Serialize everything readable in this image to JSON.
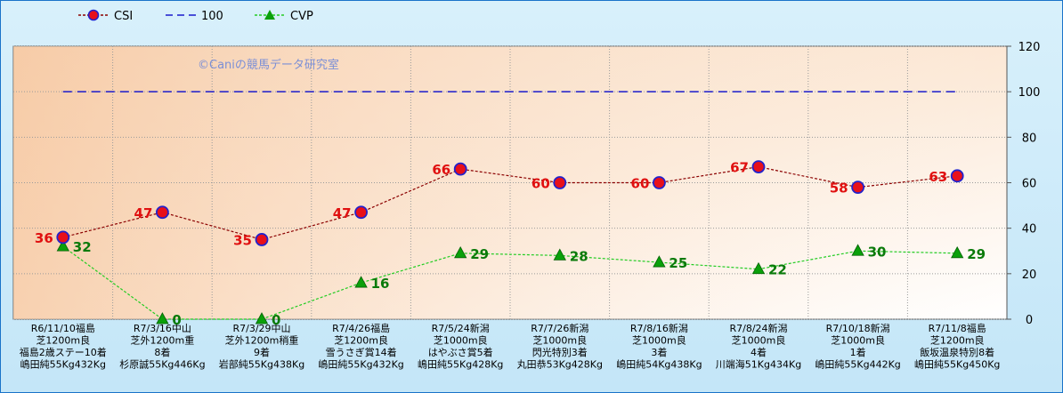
{
  "chart_data": {
    "type": "line",
    "legend_position": "top-left",
    "grid": true,
    "watermark": "©Caniの競馬データ研究室",
    "ylim": [
      0,
      120
    ],
    "y_ticks": [
      "0",
      "20",
      "40",
      "60",
      "80",
      "100",
      "120"
    ],
    "categories": [
      [
        "R6/11/10福島",
        "芝1200m良",
        "福島2歳ステー10着",
        "嶋田純55Kg432Kg"
      ],
      [
        "R7/3/16中山",
        "芝外1200m重",
        "8着",
        "杉原誠55Kg446Kg"
      ],
      [
        "R7/3/29中山",
        "芝外1200m稍重",
        "9着",
        "岩部純55Kg438Kg"
      ],
      [
        "R7/4/26福島",
        "芝1200m良",
        "雪うさぎ賞14着",
        "嶋田純55Kg432Kg"
      ],
      [
        "R7/5/24新潟",
        "芝1000m良",
        "はやぶさ賞5着",
        "嶋田純55Kg428Kg"
      ],
      [
        "R7/7/26新潟",
        "芝1000m良",
        "閃光特別3着",
        "丸田恭53Kg428Kg"
      ],
      [
        "R7/8/16新潟",
        "芝1000m良",
        "3着",
        "嶋田純54Kg438Kg"
      ],
      [
        "R7/8/24新潟",
        "芝1000m良",
        "4着",
        "川端海51Kg434Kg"
      ],
      [
        "R7/10/18新潟",
        "芝1000m良",
        "1着",
        "嶋田純55Kg442Kg"
      ],
      [
        "R7/11/8福島",
        "芝1200m良",
        "飯坂温泉特別8着",
        "嶋田純55Kg450Kg"
      ]
    ],
    "series": [
      {
        "name": "CSI",
        "color": "#8b0000",
        "marker_fill": "#e8101a",
        "marker_stroke": "#2222cc",
        "values": [
          36,
          47,
          35,
          47,
          66,
          60,
          60,
          67,
          58,
          63
        ]
      },
      {
        "name": "100",
        "color": "#1a1acc",
        "values": [
          100,
          100,
          100,
          100,
          100,
          100,
          100,
          100,
          100,
          100
        ]
      },
      {
        "name": "CVP",
        "color": "#22cc22",
        "marker_fill": "#0aa00a",
        "values": [
          32,
          0,
          0,
          16,
          29,
          28,
          25,
          22,
          30,
          29
        ]
      }
    ]
  }
}
